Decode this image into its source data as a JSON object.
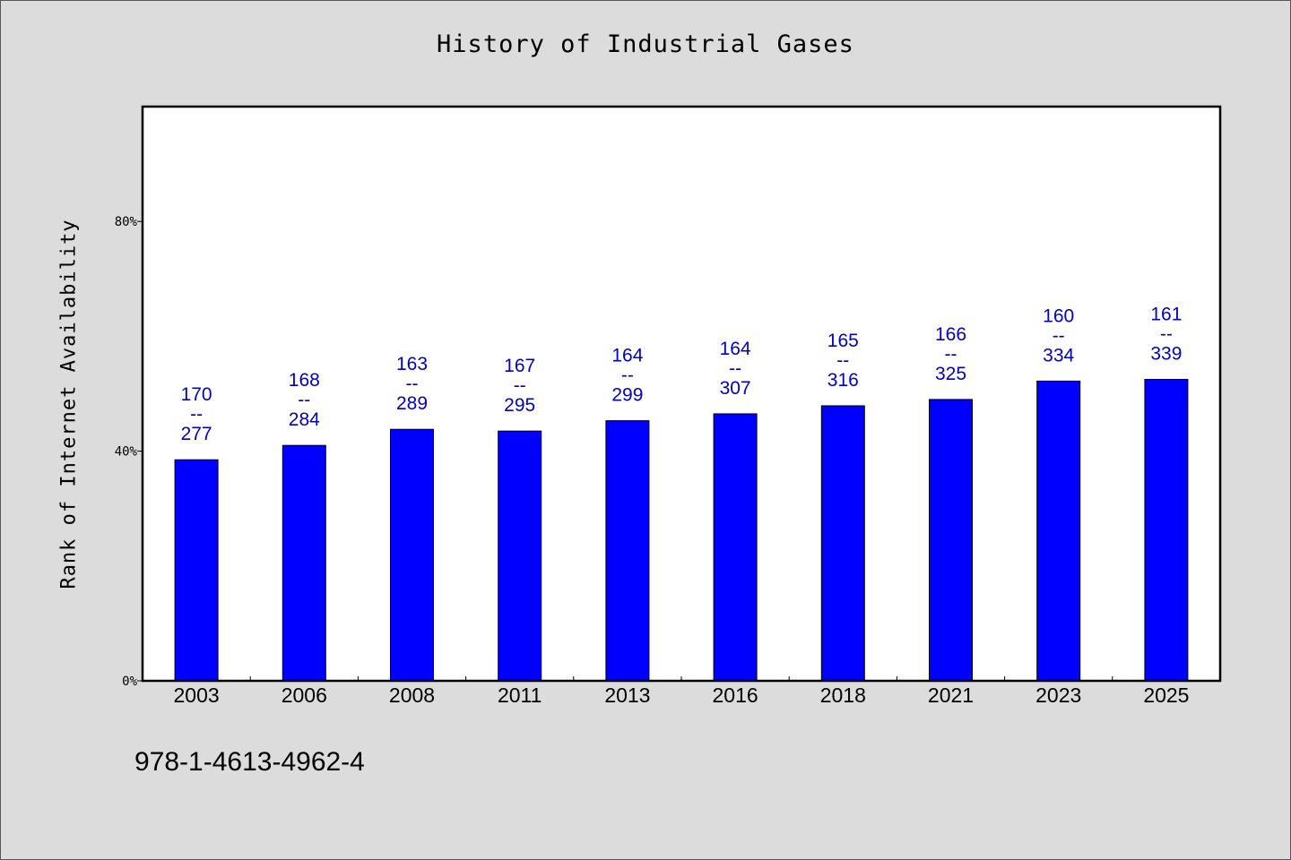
{
  "chart_data": {
    "type": "bar",
    "title": "History of Industrial Gases",
    "xlabel": "",
    "ylabel": "Rank of Internet Availability",
    "categories": [
      "2003",
      "2006",
      "2008",
      "2011",
      "2013",
      "2016",
      "2018",
      "2021",
      "2023",
      "2025"
    ],
    "values": [
      38.5,
      41.0,
      43.8,
      43.5,
      45.3,
      46.5,
      47.9,
      49.0,
      52.2,
      52.5
    ],
    "data_labels": [
      [
        "170",
        "--",
        "277"
      ],
      [
        "168",
        "--",
        "284"
      ],
      [
        "163",
        "--",
        "289"
      ],
      [
        "167",
        "--",
        "295"
      ],
      [
        "164",
        "--",
        "299"
      ],
      [
        "164",
        "--",
        "307"
      ],
      [
        "165",
        "--",
        "316"
      ],
      [
        "166",
        "--",
        "325"
      ],
      [
        "160",
        "--",
        "334"
      ],
      [
        "161",
        "--",
        "339"
      ]
    ],
    "yticks": [
      "0%",
      "40%",
      "80%"
    ],
    "ytick_values": [
      0,
      40,
      80
    ],
    "ylim": [
      0,
      100
    ],
    "grid": false,
    "legend": "none",
    "colors": {
      "bar": "#0000ff",
      "label": "#0000cc",
      "plot_bg": "#ffffff",
      "page_bg": "#dcdcdc"
    }
  },
  "footer": {
    "isbn": "978-1-4613-4962-4"
  }
}
